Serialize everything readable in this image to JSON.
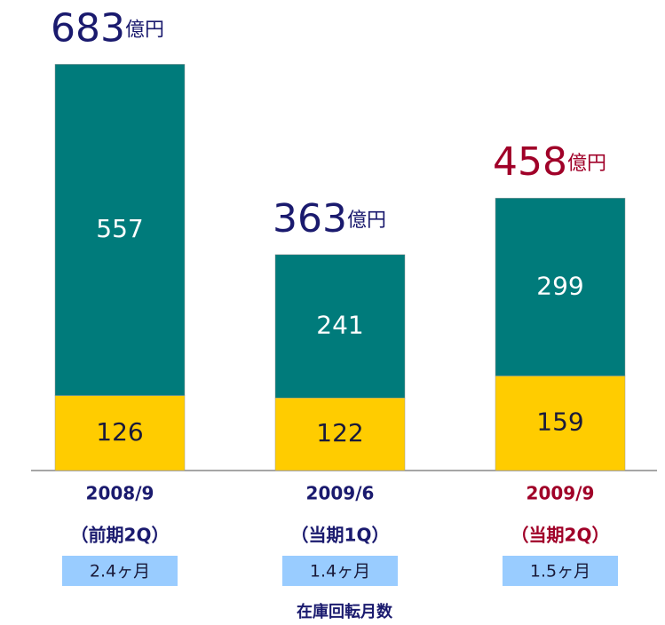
{
  "chart_data": {
    "type": "stacked_bar",
    "categories": [
      "2008/9",
      "2009/6",
      "2009/9"
    ],
    "subcategories": [
      "（前期2Q）",
      "（当期1Q）",
      "（当期2Q）"
    ],
    "category_colors": [
      "#1a1a6e",
      "#1a1a6e",
      "#a00028"
    ],
    "series": [
      {
        "color": "#ffcc00",
        "label_color": "#1a1a3a",
        "values": [
          126,
          122,
          159
        ]
      },
      {
        "color": "#007b7b",
        "label_color": "#ffffff",
        "values": [
          557,
          241,
          299
        ]
      }
    ],
    "totals": [
      683,
      363,
      458
    ],
    "total_unit": "億円",
    "turnover_labels": [
      "2.4ヶ月",
      "1.4ヶ月",
      "1.5ヶ月"
    ],
    "turnover_title": "在庫回転月数",
    "ylim": [
      0,
      700
    ]
  }
}
